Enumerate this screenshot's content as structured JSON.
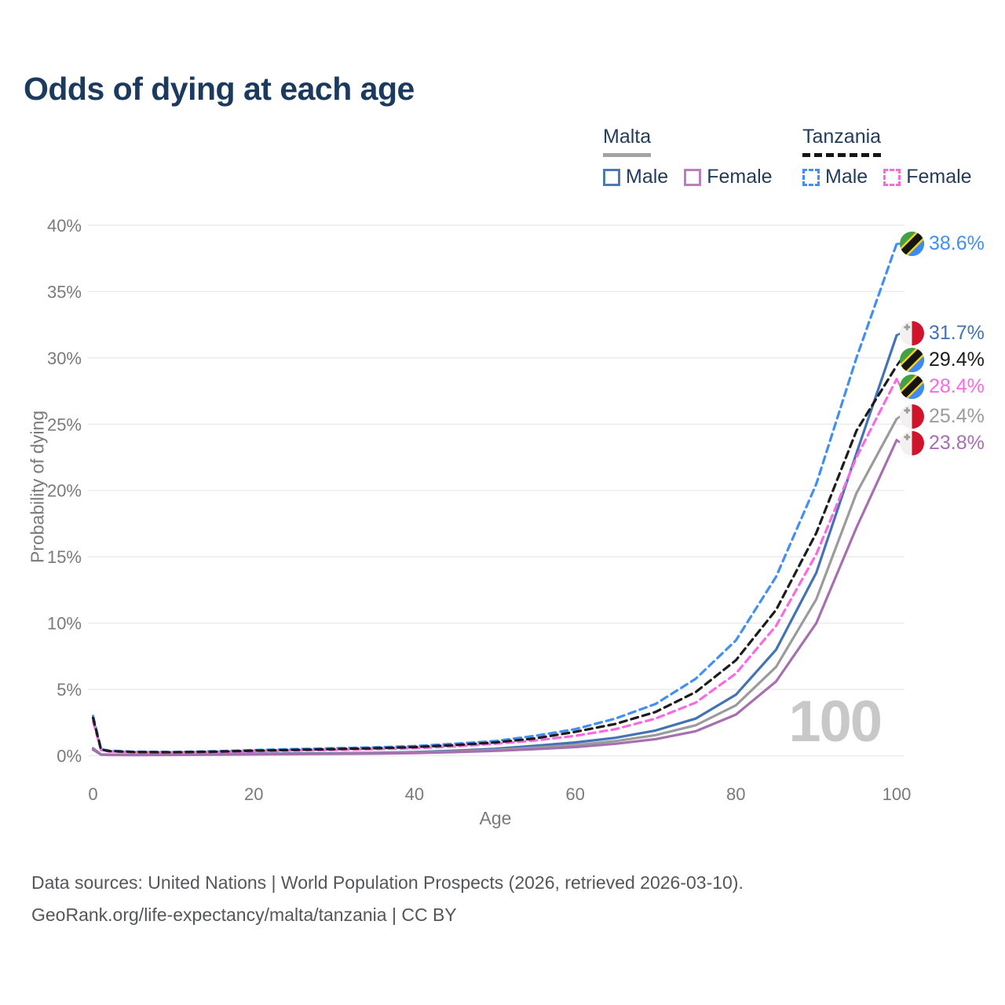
{
  "header": {
    "title": "Odds of dying at each age"
  },
  "legend": {
    "groups": [
      {
        "label": "Malta",
        "dash": false,
        "underline_color": "#a3a3a3",
        "items": [
          {
            "label": "Male",
            "swatch_color": "#4a7ab8",
            "dash": false
          },
          {
            "label": "Female",
            "swatch_color": "#bd7ec0",
            "dash": false
          }
        ]
      },
      {
        "label": "Tanzania",
        "dash": true,
        "underline_color": "#161616",
        "items": [
          {
            "label": "Male",
            "swatch_color": "#418ff4",
            "dash": true
          },
          {
            "label": "Female",
            "swatch_color": "#f96ae1",
            "dash": true
          }
        ]
      }
    ]
  },
  "axes": {
    "y_title": "Probability of dying",
    "x_title": "Age",
    "y_ticks": [
      {
        "value": 0,
        "label": "0%"
      },
      {
        "value": 5,
        "label": "5%"
      },
      {
        "value": 10,
        "label": "10%"
      },
      {
        "value": 15,
        "label": "15%"
      },
      {
        "value": 20,
        "label": "20%"
      },
      {
        "value": 25,
        "label": "25%"
      },
      {
        "value": 30,
        "label": "30%"
      },
      {
        "value": 35,
        "label": "35%"
      },
      {
        "value": 40,
        "label": "40%"
      }
    ],
    "x_ticks": [
      {
        "value": 0,
        "label": "0"
      },
      {
        "value": 20,
        "label": "20"
      },
      {
        "value": 40,
        "label": "40"
      },
      {
        "value": 60,
        "label": "60"
      },
      {
        "value": 80,
        "label": "80"
      },
      {
        "value": 100,
        "label": "100"
      }
    ]
  },
  "watermark": {
    "value": "100"
  },
  "footer": {
    "line1": "Data sources: United Nations | World Population Prospects (2026, retrieved 2026-03-10).",
    "line2": "GeoRank.org/life-expectancy/malta/tanzania | CC BY"
  },
  "colors": {
    "title_text": "#1c3a5e",
    "legend_text": "#243c59",
    "axis_text": "#7a7a7a",
    "gridline": "#ececec",
    "watermark": "#c8c8c8",
    "malta_male": "#4373b5",
    "malta_female": "#a76fb0",
    "malta_both": "#9b9b9b",
    "tanzania_male": "#418ff4",
    "tanzania_female": "#f96ae1",
    "tanzania_both": "#1c1c1c",
    "malta_flag_red": "#cf142b",
    "tanzania_flag_green": "#43a047",
    "tanzania_flag_blue": "#3d8af2",
    "tanzania_flag_yellow": "#fcd116"
  },
  "chart_data": {
    "type": "line",
    "title": "Odds of dying at each age",
    "xlabel": "Age",
    "ylabel": "Probability of dying",
    "xlim": [
      0,
      100
    ],
    "ylim": [
      0,
      40
    ],
    "grid": true,
    "legend_position": "top-right",
    "x": [
      0,
      1,
      2,
      5,
      10,
      15,
      20,
      25,
      30,
      35,
      40,
      45,
      50,
      55,
      60,
      65,
      70,
      75,
      80,
      85,
      90,
      95,
      100
    ],
    "series": [
      {
        "id": "malta-male",
        "name": "Malta — Male",
        "country": "Malta",
        "sex": "male",
        "color": "#4373b5",
        "label_color": "#4373b5",
        "dash": false,
        "flag": "mt",
        "end_label": "31.7%",
        "end_value": 31.7,
        "values": [
          0.55,
          0.1,
          0.08,
          0.07,
          0.08,
          0.12,
          0.15,
          0.17,
          0.19,
          0.22,
          0.28,
          0.38,
          0.52,
          0.75,
          1.0,
          1.35,
          1.9,
          2.8,
          4.6,
          8.0,
          13.8,
          22.8,
          31.7
        ]
      },
      {
        "id": "malta-both",
        "name": "Malta — Both sexes",
        "country": "Malta",
        "sex": "both",
        "color": "#9b9b9b",
        "label_color": "#9b9b9b",
        "dash": false,
        "flag": "mt",
        "end_label": "25.4%",
        "end_value": 25.4,
        "values": [
          0.5,
          0.09,
          0.07,
          0.06,
          0.07,
          0.1,
          0.12,
          0.14,
          0.16,
          0.19,
          0.24,
          0.32,
          0.44,
          0.6,
          0.8,
          1.1,
          1.55,
          2.3,
          3.8,
          6.7,
          11.8,
          19.8,
          25.4
        ]
      },
      {
        "id": "malta-female",
        "name": "Malta — Female",
        "country": "Malta",
        "sex": "female",
        "color": "#a76fb0",
        "label_color": "#a76fb0",
        "dash": false,
        "flag": "mt",
        "end_label": "23.8%",
        "end_value": 23.8,
        "values": [
          0.45,
          0.08,
          0.06,
          0.05,
          0.06,
          0.08,
          0.1,
          0.12,
          0.14,
          0.16,
          0.2,
          0.27,
          0.37,
          0.5,
          0.65,
          0.9,
          1.25,
          1.85,
          3.1,
          5.6,
          10.0,
          17.2,
          23.8
        ]
      },
      {
        "id": "tanzania-male",
        "name": "Tanzania — Male",
        "country": "Tanzania",
        "sex": "male",
        "color": "#418ff4",
        "label_color": "#418ff4",
        "dash": true,
        "flag": "tz",
        "end_label": "38.6%",
        "end_value": 38.6,
        "values": [
          3.0,
          0.5,
          0.38,
          0.3,
          0.28,
          0.33,
          0.42,
          0.5,
          0.56,
          0.63,
          0.73,
          0.9,
          1.1,
          1.5,
          2.0,
          2.8,
          3.9,
          5.8,
          8.7,
          13.5,
          20.5,
          30.0,
          38.6
        ]
      },
      {
        "id": "tanzania-female",
        "name": "Tanzania — Female",
        "country": "Tanzania",
        "sex": "female",
        "color": "#f96ae1",
        "label_color": "#f96ae1",
        "dash": true,
        "flag": "tz",
        "end_label": "28.4%",
        "end_value": 28.4,
        "values": [
          2.6,
          0.42,
          0.32,
          0.26,
          0.24,
          0.27,
          0.33,
          0.38,
          0.43,
          0.49,
          0.57,
          0.7,
          0.9,
          1.15,
          1.5,
          2.0,
          2.8,
          4.0,
          6.2,
          9.8,
          15.2,
          22.5,
          28.4
        ]
      },
      {
        "id": "tanzania-both",
        "name": "Tanzania — Both sexes",
        "country": "Tanzania",
        "sex": "both",
        "color": "#1c1c1c",
        "label_color": "#1c1c1c",
        "dash": true,
        "flag": "tz",
        "end_label": "29.4%",
        "end_value": 29.4,
        "values": [
          2.85,
          0.46,
          0.35,
          0.28,
          0.26,
          0.3,
          0.38,
          0.44,
          0.5,
          0.56,
          0.65,
          0.8,
          1.0,
          1.3,
          1.8,
          2.4,
          3.3,
          4.8,
          7.2,
          11.0,
          16.8,
          24.5,
          29.4
        ]
      }
    ]
  }
}
